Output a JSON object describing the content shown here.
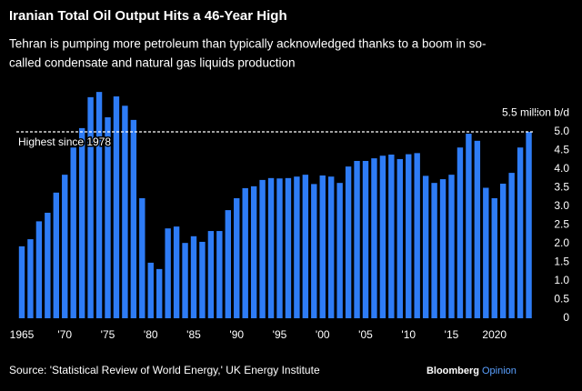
{
  "chart_data": {
    "type": "bar",
    "title": "Iranian Total Oil Output Hits a 46-Year High",
    "subtitle": [
      "Tehran is pumping more petroleum than typically acknowledged thanks to a boom in so-",
      "called condensate and natural gas liquids production"
    ],
    "categories": [
      "1965",
      null,
      null,
      null,
      null,
      "'70",
      null,
      null,
      null,
      null,
      "'75",
      null,
      null,
      null,
      null,
      "'80",
      null,
      null,
      null,
      null,
      "'85",
      null,
      null,
      null,
      null,
      "'90",
      null,
      null,
      null,
      null,
      "'95",
      null,
      null,
      null,
      null,
      "'00",
      null,
      null,
      null,
      null,
      "'05",
      null,
      null,
      null,
      null,
      "'10",
      null,
      null,
      null,
      null,
      "'15",
      null,
      null,
      null,
      null,
      "2020",
      null,
      null,
      null,
      null
    ],
    "values": [
      1.93,
      2.12,
      2.6,
      2.83,
      3.37,
      3.85,
      4.58,
      5.1,
      5.93,
      6.07,
      5.39,
      5.95,
      5.7,
      5.32,
      3.22,
      1.49,
      1.32,
      2.41,
      2.46,
      2.02,
      2.2,
      2.05,
      2.34,
      2.34,
      2.9,
      3.22,
      3.49,
      3.54,
      3.71,
      3.76,
      3.75,
      3.76,
      3.8,
      3.85,
      3.6,
      3.83,
      3.8,
      3.63,
      4.07,
      4.22,
      4.22,
      4.29,
      4.36,
      4.39,
      4.27,
      4.4,
      4.43,
      3.82,
      3.63,
      3.73,
      3.85,
      4.58,
      4.95,
      4.76,
      3.5,
      3.22,
      3.61,
      3.9,
      4.58,
      5.0
    ],
    "color": "#2e7cf6",
    "ylim": [
      0,
      6.2
    ],
    "yticks": [
      0,
      0.5,
      {
        "value": 1,
        "label": "1.0"
      },
      1.5,
      {
        "value": 2,
        "label": "2.0"
      },
      2.5,
      {
        "value": 3,
        "label": "3.0"
      },
      3.5,
      {
        "value": 4,
        "label": "4.0"
      },
      4.5,
      {
        "value": 5,
        "label": "5.0"
      },
      {
        "value": 5.5,
        "label": "5.5 million b/d"
      }
    ],
    "reference_line": {
      "value": 5,
      "label": "Highest since 1978"
    },
    "source": "Source: 'Statistical Review of World Energy,' UK Energy Institute",
    "brand": [
      "Bloomberg",
      "Opinion"
    ]
  }
}
